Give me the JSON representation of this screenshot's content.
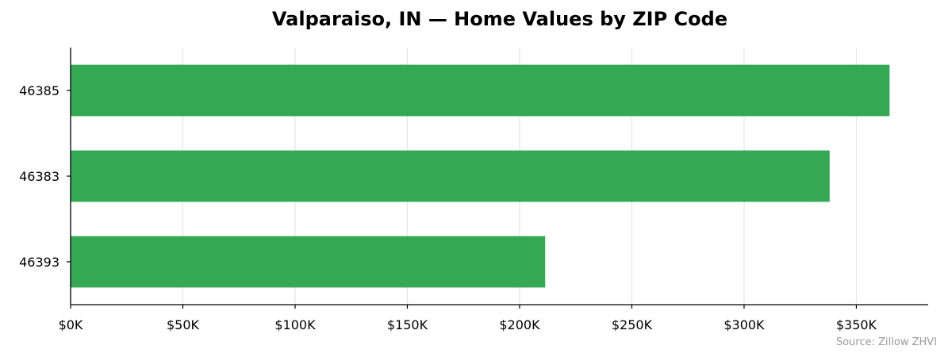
{
  "chart_data": {
    "type": "bar",
    "orientation": "horizontal",
    "title": "Valparaiso, IN — Home Values by ZIP Code",
    "categories": [
      "46385",
      "46383",
      "46393"
    ],
    "values": [
      364800,
      338100,
      211400
    ],
    "xlim": [
      0,
      382000
    ],
    "xticks": [
      0,
      50000,
      100000,
      150000,
      200000,
      250000,
      300000,
      350000
    ],
    "xtick_labels": [
      "$0K",
      "$50K",
      "$100K",
      "$150K",
      "$200K",
      "$250K",
      "$300K",
      "$350K"
    ],
    "xlabel": "",
    "ylabel": "",
    "grid": "vertical",
    "legend": "none",
    "bar_color": "#34a853",
    "grid_color": "#e6e6e6",
    "source": "Source: Zillow ZHVI"
  }
}
